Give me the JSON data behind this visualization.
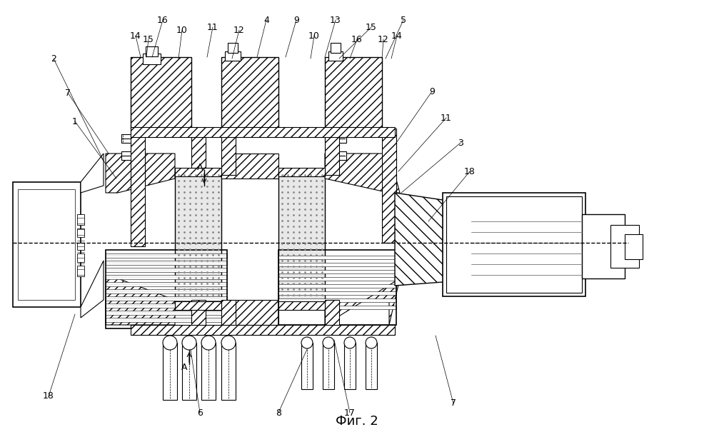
{
  "title": "Фиг. 2",
  "bg_color": "#ffffff",
  "fig_width": 10.0,
  "fig_height": 6.12,
  "dpi": 100
}
